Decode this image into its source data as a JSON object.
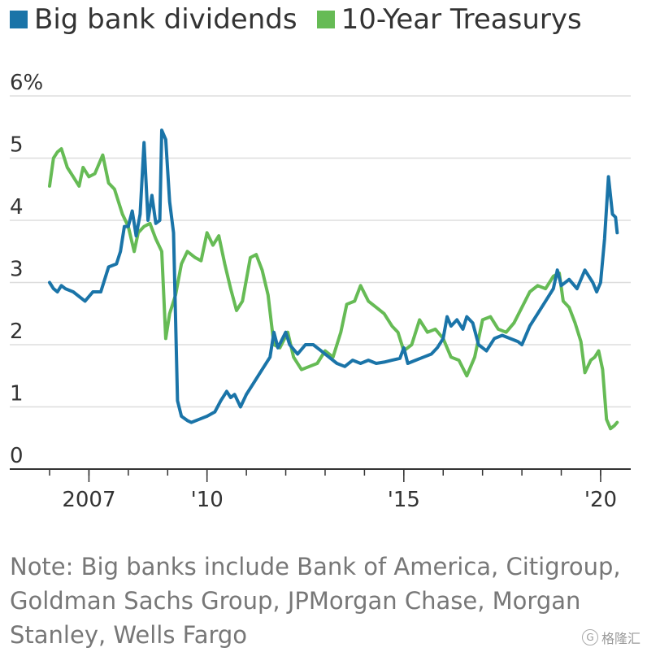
{
  "legend": [
    {
      "label": "Big bank dividends",
      "color": "#1a74a8"
    },
    {
      "label": "10-Year Treasurys",
      "color": "#66bb55"
    }
  ],
  "note": "Note: Big banks include Bank of America, Citigroup, Goldman Sachs Group, JPMorgan Chase, Morgan Stanley, Wells Fargo",
  "watermark": {
    "text": "格隆汇",
    "icon": "G"
  },
  "chart_data": {
    "type": "line",
    "title": "",
    "xlabel": "",
    "ylabel": "",
    "ylim": [
      0,
      6
    ],
    "xlim": [
      2006.0,
      2020.6
    ],
    "y_ticks": [
      {
        "value": 6,
        "label": "6%"
      },
      {
        "value": 5,
        "label": "5"
      },
      {
        "value": 4,
        "label": "4"
      },
      {
        "value": 3,
        "label": "3"
      },
      {
        "value": 2,
        "label": "2"
      },
      {
        "value": 1,
        "label": "1"
      },
      {
        "value": 0,
        "label": "0"
      }
    ],
    "x_ticks": [
      {
        "value": 2007,
        "label": "2007"
      },
      {
        "value": 2010,
        "label": "'10"
      },
      {
        "value": 2015,
        "label": "'15"
      },
      {
        "value": 2020,
        "label": "'20"
      }
    ],
    "x_minor_ticks": [
      2006,
      2007,
      2008,
      2009,
      2010,
      2011,
      2012,
      2013,
      2014,
      2015,
      2016,
      2017,
      2018,
      2019,
      2020
    ],
    "grid": "horizontal",
    "legend_position": "top-left",
    "series": [
      {
        "name": "Big bank dividends",
        "color": "#1a74a8",
        "points": [
          [
            2006.0,
            3.0
          ],
          [
            2006.1,
            2.9
          ],
          [
            2006.2,
            2.85
          ],
          [
            2006.3,
            2.95
          ],
          [
            2006.4,
            2.9
          ],
          [
            2006.6,
            2.85
          ],
          [
            2006.8,
            2.75
          ],
          [
            2006.9,
            2.7
          ],
          [
            2007.1,
            2.85
          ],
          [
            2007.3,
            2.85
          ],
          [
            2007.5,
            3.25
          ],
          [
            2007.7,
            3.3
          ],
          [
            2007.8,
            3.5
          ],
          [
            2007.9,
            3.9
          ],
          [
            2008.0,
            3.9
          ],
          [
            2008.1,
            4.15
          ],
          [
            2008.2,
            3.75
          ],
          [
            2008.3,
            4.1
          ],
          [
            2008.4,
            5.25
          ],
          [
            2008.5,
            4.0
          ],
          [
            2008.6,
            4.4
          ],
          [
            2008.7,
            3.95
          ],
          [
            2008.8,
            4.0
          ],
          [
            2008.85,
            5.45
          ],
          [
            2008.95,
            5.3
          ],
          [
            2009.05,
            4.3
          ],
          [
            2009.15,
            3.8
          ],
          [
            2009.25,
            1.1
          ],
          [
            2009.35,
            0.85
          ],
          [
            2009.5,
            0.78
          ],
          [
            2009.6,
            0.75
          ],
          [
            2009.8,
            0.8
          ],
          [
            2010.0,
            0.85
          ],
          [
            2010.2,
            0.92
          ],
          [
            2010.35,
            1.1
          ],
          [
            2010.5,
            1.25
          ],
          [
            2010.6,
            1.15
          ],
          [
            2010.7,
            1.2
          ],
          [
            2010.85,
            1.0
          ],
          [
            2011.0,
            1.2
          ],
          [
            2011.2,
            1.4
          ],
          [
            2011.4,
            1.6
          ],
          [
            2011.6,
            1.8
          ],
          [
            2011.7,
            2.2
          ],
          [
            2011.8,
            1.95
          ],
          [
            2012.0,
            2.2
          ],
          [
            2012.1,
            2.0
          ],
          [
            2012.3,
            1.85
          ],
          [
            2012.5,
            2.0
          ],
          [
            2012.7,
            2.0
          ],
          [
            2012.9,
            1.9
          ],
          [
            2013.1,
            1.8
          ],
          [
            2013.3,
            1.7
          ],
          [
            2013.5,
            1.65
          ],
          [
            2013.7,
            1.75
          ],
          [
            2013.9,
            1.7
          ],
          [
            2014.1,
            1.75
          ],
          [
            2014.3,
            1.7
          ],
          [
            2014.5,
            1.72
          ],
          [
            2014.7,
            1.75
          ],
          [
            2014.9,
            1.78
          ],
          [
            2015.0,
            1.95
          ],
          [
            2015.1,
            1.7
          ],
          [
            2015.3,
            1.75
          ],
          [
            2015.5,
            1.8
          ],
          [
            2015.7,
            1.85
          ],
          [
            2015.85,
            1.95
          ],
          [
            2016.0,
            2.1
          ],
          [
            2016.1,
            2.45
          ],
          [
            2016.2,
            2.3
          ],
          [
            2016.35,
            2.4
          ],
          [
            2016.5,
            2.25
          ],
          [
            2016.6,
            2.45
          ],
          [
            2016.75,
            2.35
          ],
          [
            2016.9,
            2.0
          ],
          [
            2017.1,
            1.9
          ],
          [
            2017.3,
            2.1
          ],
          [
            2017.5,
            2.15
          ],
          [
            2017.7,
            2.1
          ],
          [
            2017.9,
            2.05
          ],
          [
            2018.0,
            2.0
          ],
          [
            2018.2,
            2.3
          ],
          [
            2018.4,
            2.5
          ],
          [
            2018.6,
            2.7
          ],
          [
            2018.8,
            2.9
          ],
          [
            2018.9,
            3.2
          ],
          [
            2019.0,
            2.95
          ],
          [
            2019.2,
            3.05
          ],
          [
            2019.4,
            2.9
          ],
          [
            2019.6,
            3.2
          ],
          [
            2019.8,
            3.0
          ],
          [
            2019.9,
            2.85
          ],
          [
            2020.0,
            3.0
          ],
          [
            2020.1,
            3.7
          ],
          [
            2020.2,
            4.7
          ],
          [
            2020.3,
            4.1
          ],
          [
            2020.38,
            4.05
          ],
          [
            2020.42,
            3.8
          ]
        ]
      },
      {
        "name": "10-Year Treasurys",
        "color": "#66bb55",
        "points": [
          [
            2006.0,
            4.55
          ],
          [
            2006.1,
            5.0
          ],
          [
            2006.2,
            5.1
          ],
          [
            2006.3,
            5.15
          ],
          [
            2006.45,
            4.85
          ],
          [
            2006.6,
            4.7
          ],
          [
            2006.75,
            4.55
          ],
          [
            2006.85,
            4.85
          ],
          [
            2007.0,
            4.7
          ],
          [
            2007.15,
            4.75
          ],
          [
            2007.35,
            5.05
          ],
          [
            2007.5,
            4.6
          ],
          [
            2007.65,
            4.5
          ],
          [
            2007.85,
            4.1
          ],
          [
            2008.0,
            3.9
          ],
          [
            2008.15,
            3.5
          ],
          [
            2008.25,
            3.8
          ],
          [
            2008.4,
            3.9
          ],
          [
            2008.55,
            3.95
          ],
          [
            2008.7,
            3.7
          ],
          [
            2008.85,
            3.5
          ],
          [
            2008.95,
            2.1
          ],
          [
            2009.05,
            2.5
          ],
          [
            2009.2,
            2.8
          ],
          [
            2009.35,
            3.3
          ],
          [
            2009.5,
            3.5
          ],
          [
            2009.7,
            3.4
          ],
          [
            2009.85,
            3.35
          ],
          [
            2010.0,
            3.8
          ],
          [
            2010.15,
            3.6
          ],
          [
            2010.3,
            3.75
          ],
          [
            2010.45,
            3.3
          ],
          [
            2010.6,
            2.9
          ],
          [
            2010.75,
            2.55
          ],
          [
            2010.9,
            2.7
          ],
          [
            2011.1,
            3.4
          ],
          [
            2011.25,
            3.45
          ],
          [
            2011.4,
            3.2
          ],
          [
            2011.55,
            2.8
          ],
          [
            2011.7,
            2.0
          ],
          [
            2011.85,
            1.95
          ],
          [
            2012.05,
            2.2
          ],
          [
            2012.2,
            1.8
          ],
          [
            2012.4,
            1.6
          ],
          [
            2012.6,
            1.65
          ],
          [
            2012.8,
            1.7
          ],
          [
            2013.0,
            1.9
          ],
          [
            2013.2,
            1.8
          ],
          [
            2013.4,
            2.2
          ],
          [
            2013.55,
            2.65
          ],
          [
            2013.75,
            2.7
          ],
          [
            2013.9,
            2.95
          ],
          [
            2014.1,
            2.7
          ],
          [
            2014.3,
            2.6
          ],
          [
            2014.5,
            2.5
          ],
          [
            2014.7,
            2.3
          ],
          [
            2014.85,
            2.2
          ],
          [
            2015.0,
            1.9
          ],
          [
            2015.2,
            2.0
          ],
          [
            2015.4,
            2.4
          ],
          [
            2015.6,
            2.2
          ],
          [
            2015.8,
            2.25
          ],
          [
            2016.0,
            2.1
          ],
          [
            2016.2,
            1.8
          ],
          [
            2016.4,
            1.75
          ],
          [
            2016.6,
            1.5
          ],
          [
            2016.8,
            1.8
          ],
          [
            2017.0,
            2.4
          ],
          [
            2017.2,
            2.45
          ],
          [
            2017.4,
            2.25
          ],
          [
            2017.6,
            2.2
          ],
          [
            2017.8,
            2.35
          ],
          [
            2018.0,
            2.6
          ],
          [
            2018.2,
            2.85
          ],
          [
            2018.4,
            2.95
          ],
          [
            2018.6,
            2.9
          ],
          [
            2018.8,
            3.1
          ],
          [
            2018.95,
            3.15
          ],
          [
            2019.05,
            2.7
          ],
          [
            2019.2,
            2.6
          ],
          [
            2019.35,
            2.35
          ],
          [
            2019.5,
            2.05
          ],
          [
            2019.6,
            1.55
          ],
          [
            2019.75,
            1.75
          ],
          [
            2019.85,
            1.8
          ],
          [
            2019.95,
            1.9
          ],
          [
            2020.05,
            1.6
          ],
          [
            2020.15,
            0.8
          ],
          [
            2020.25,
            0.65
          ],
          [
            2020.35,
            0.7
          ],
          [
            2020.42,
            0.75
          ]
        ]
      }
    ]
  }
}
